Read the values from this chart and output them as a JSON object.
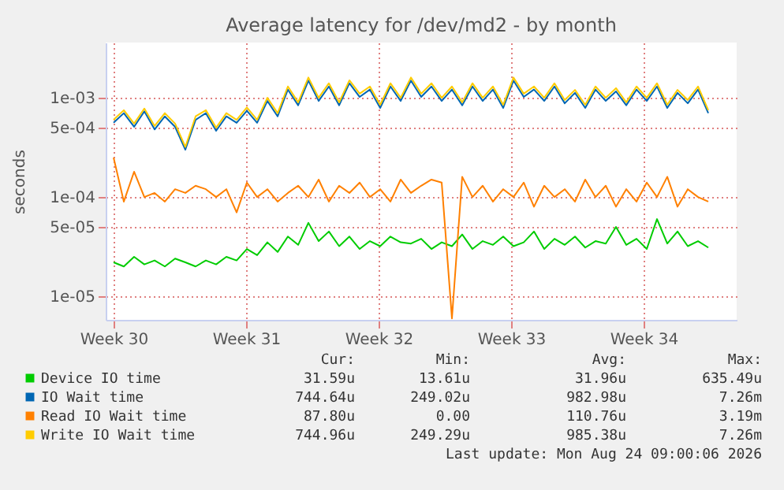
{
  "chart_data": {
    "type": "line",
    "title": "Average latency for /dev/md2 - by month",
    "ylabel": "seconds",
    "x": [
      "2026-07-20T00:00",
      "2026-07-20T13:00",
      "2026-07-21T02:00",
      "2026-07-21T15:00",
      "2026-07-22T04:00",
      "2026-07-22T17:00",
      "2026-07-23T06:00",
      "2026-07-23T19:00",
      "2026-07-24T08:00",
      "2026-07-24T21:00",
      "2026-07-25T10:00",
      "2026-07-25T23:00",
      "2026-07-26T12:00",
      "2026-07-27T01:00",
      "2026-07-27T14:00",
      "2026-07-28T03:00",
      "2026-07-28T16:00",
      "2026-07-29T05:00",
      "2026-07-29T18:00",
      "2026-07-30T07:00",
      "2026-07-30T20:00",
      "2026-07-31T09:00",
      "2026-07-31T22:00",
      "2026-08-01T11:00",
      "2026-08-02T00:00",
      "2026-08-02T13:00",
      "2026-08-03T02:00",
      "2026-08-03T15:00",
      "2026-08-04T04:00",
      "2026-08-04T17:00",
      "2026-08-05T06:00",
      "2026-08-05T19:00",
      "2026-08-06T08:00",
      "2026-08-06T21:00",
      "2026-08-07T10:00",
      "2026-08-07T23:00",
      "2026-08-08T12:00",
      "2026-08-09T01:00",
      "2026-08-09T14:00",
      "2026-08-10T03:00",
      "2026-08-10T16:00",
      "2026-08-11T05:00",
      "2026-08-11T18:00",
      "2026-08-12T07:00",
      "2026-08-12T20:00",
      "2026-08-13T09:00",
      "2026-08-13T22:00",
      "2026-08-14T11:00",
      "2026-08-15T00:00",
      "2026-08-15T13:00",
      "2026-08-16T02:00",
      "2026-08-16T15:00",
      "2026-08-17T04:00",
      "2026-08-17T17:00",
      "2026-08-18T06:00",
      "2026-08-18T19:00",
      "2026-08-19T08:00",
      "2026-08-19T21:00",
      "2026-08-20T10:00"
    ],
    "series": [
      {
        "name": "Device IO time",
        "color": "#00cc00",
        "values": [
          2.2e-05,
          2e-05,
          2.5e-05,
          2.1e-05,
          2.3e-05,
          2e-05,
          2.4e-05,
          2.2e-05,
          2e-05,
          2.3e-05,
          2.1e-05,
          2.5e-05,
          2.3e-05,
          3e-05,
          2.6e-05,
          3.5e-05,
          2.8e-05,
          4e-05,
          3.3e-05,
          5.5e-05,
          3.6e-05,
          4.5e-05,
          3.2e-05,
          4e-05,
          3e-05,
          3.6e-05,
          3.2e-05,
          4e-05,
          3.5e-05,
          3.4e-05,
          3.8e-05,
          3e-05,
          3.5e-05,
          3.2e-05,
          4.2e-05,
          3e-05,
          3.6e-05,
          3.3e-05,
          4e-05,
          3.2e-05,
          3.5e-05,
          4.5e-05,
          3e-05,
          3.8e-05,
          3.3e-05,
          4e-05,
          3.1e-05,
          3.6e-05,
          3.4e-05,
          5e-05,
          3.3e-05,
          3.8e-05,
          3e-05,
          6e-05,
          3.4e-05,
          4.5e-05,
          3.2e-05,
          3.6e-05,
          3.1e-05
        ]
      },
      {
        "name": "IO Wait time",
        "color": "#0066b3",
        "values": [
          0.00056,
          0.0007,
          0.00051,
          0.00073,
          0.00048,
          0.00065,
          0.00051,
          0.0003,
          0.0006,
          0.0007,
          0.000465,
          0.00065,
          0.00056,
          0.00074,
          0.00056,
          0.00093,
          0.00065,
          0.00121,
          0.00084,
          0.00149,
          0.00093,
          0.0013,
          0.00084,
          0.0014,
          0.00102,
          0.00121,
          0.00079,
          0.0013,
          0.00093,
          0.00149,
          0.00102,
          0.0013,
          0.00093,
          0.00121,
          0.00084,
          0.0013,
          0.00093,
          0.00121,
          0.00079,
          0.00149,
          0.00102,
          0.00121,
          0.00093,
          0.0013,
          0.00088,
          0.00112,
          0.00079,
          0.00121,
          0.00093,
          0.00116,
          0.00084,
          0.00121,
          0.00093,
          0.0013,
          0.00079,
          0.00112,
          0.00088,
          0.00121,
          0.0007
        ]
      },
      {
        "name": "Read IO Wait time",
        "color": "#ff8000",
        "values": [
          0.00025,
          9e-05,
          0.00018,
          0.0001,
          0.00011,
          9e-05,
          0.00012,
          0.00011,
          0.00013,
          0.00012,
          0.0001,
          0.00012,
          7e-05,
          0.00014,
          0.0001,
          0.00012,
          9e-05,
          0.00011,
          0.00013,
          0.0001,
          0.00015,
          9e-05,
          0.00013,
          0.00011,
          0.00014,
          0.0001,
          0.00012,
          9e-05,
          0.00015,
          0.00011,
          0.00013,
          0.00015,
          0.00014,
          6e-06,
          0.00016,
          0.0001,
          0.00013,
          9e-05,
          0.00012,
          0.0001,
          0.00014,
          8e-05,
          0.00013,
          0.0001,
          0.00012,
          9e-05,
          0.00015,
          0.0001,
          0.00013,
          8e-05,
          0.00012,
          9e-05,
          0.00014,
          0.0001,
          0.00016,
          8e-05,
          0.00012,
          0.0001,
          9e-05
        ]
      },
      {
        "name": "Write IO Wait time",
        "color": "#ffcc00",
        "values": [
          0.0006,
          0.00075,
          0.00055,
          0.00078,
          0.00052,
          0.0007,
          0.00055,
          0.00032,
          0.00065,
          0.00075,
          0.0005,
          0.0007,
          0.0006,
          0.0008,
          0.0006,
          0.001,
          0.0007,
          0.0013,
          0.0009,
          0.0016,
          0.001,
          0.0014,
          0.0009,
          0.0015,
          0.0011,
          0.0013,
          0.00085,
          0.0014,
          0.001,
          0.0016,
          0.0011,
          0.0014,
          0.001,
          0.0013,
          0.0009,
          0.0014,
          0.001,
          0.0013,
          0.00085,
          0.0016,
          0.0011,
          0.0013,
          0.001,
          0.0014,
          0.00095,
          0.0012,
          0.00085,
          0.0013,
          0.001,
          0.00125,
          0.0009,
          0.0013,
          0.001,
          0.0014,
          0.00085,
          0.0012,
          0.00095,
          0.0013,
          0.00075
        ]
      }
    ],
    "xlim": [
      "2026-07-19T14:00",
      "2026-08-21T22:00"
    ],
    "xticks": [
      {
        "value": "2026-07-20",
        "label": "Week 30"
      },
      {
        "value": "2026-07-27",
        "label": "Week 31"
      },
      {
        "value": "2026-08-03",
        "label": "Week 32"
      },
      {
        "value": "2026-08-10",
        "label": "Week 33"
      },
      {
        "value": "2026-08-17",
        "label": "Week 34"
      }
    ],
    "ylim": [
      5.8e-06,
      0.0036
    ],
    "yticks": [
      {
        "value": 1e-05,
        "label": "1e-05"
      },
      {
        "value": 5e-05,
        "label": "5e-05"
      },
      {
        "value": 0.0001,
        "label": "1e-04"
      },
      {
        "value": 0.0005,
        "label": "5e-04"
      },
      {
        "value": 0.001,
        "label": "1e-03"
      }
    ],
    "log": "y",
    "grid": true,
    "legend": "bottom",
    "marker": "none",
    "line_style": "solid",
    "annotations": [
      "Cur:",
      "Min:",
      "Avg:",
      "Max:",
      "31.59u",
      "13.61u",
      "31.96u",
      "635.49u",
      "744.64u",
      "249.02u",
      "982.98u",
      "7.26m",
      "87.80u",
      "0.00",
      "110.76u",
      "3.19m",
      "744.96u",
      "249.29u",
      "985.38u",
      "7.26m",
      "Last update: Mon Aug 24 09:00:06 2026"
    ]
  }
}
